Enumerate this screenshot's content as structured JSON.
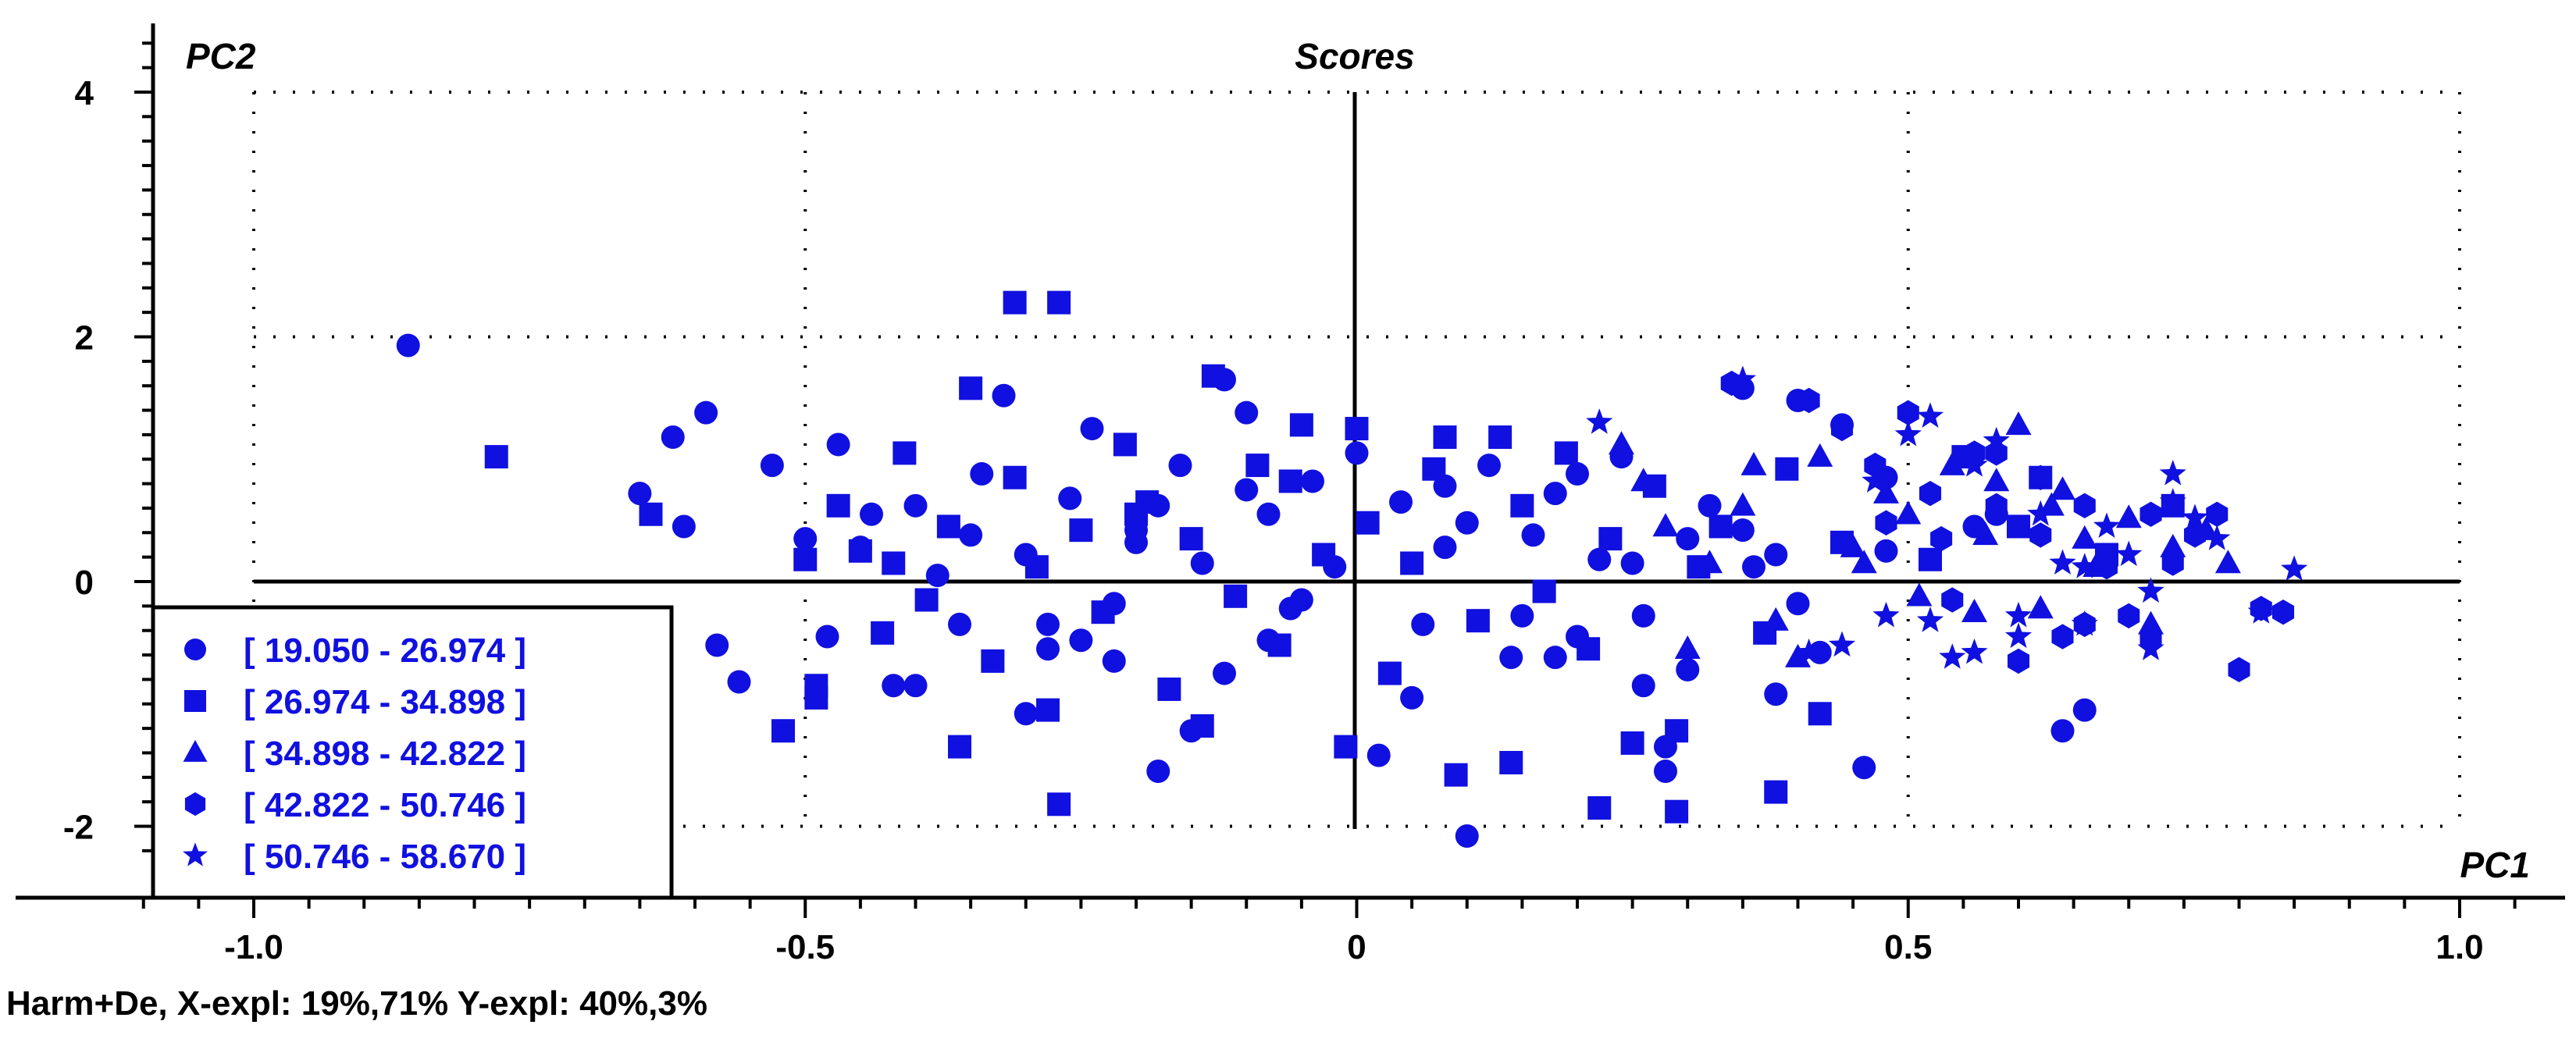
{
  "chart_data": {
    "type": "scatter",
    "title": "Scores",
    "xlabel": "PC1",
    "ylabel": "PC2",
    "xlim": [
      -1.0,
      1.0
    ],
    "ylim": [
      -2.2,
      4.4
    ],
    "x_ticks": [
      -1.0,
      -0.5,
      0,
      0.5,
      1.0
    ],
    "x_tick_labels": [
      "-1.0",
      "-0.5",
      "0",
      "0.5",
      "1.0"
    ],
    "y_ticks": [
      4,
      2,
      0,
      -2
    ],
    "y_tick_labels": [
      "4",
      "2",
      "0",
      "-2"
    ],
    "grid": true,
    "legend_position": "bottom-left",
    "footer": "Harm+De, X-expl: 19%,71%  Y-expl: 40%,3%",
    "marker_color": "#1010e0",
    "series": [
      {
        "name": "[ 19.050 - 26.974 ]",
        "marker": "circle",
        "x": [
          -0.86,
          -0.65,
          -0.62,
          -0.59,
          -0.61,
          -0.58,
          -0.56,
          -0.53,
          -0.5,
          -0.48,
          -0.47,
          -0.45,
          -0.42,
          -0.4,
          -0.38,
          -0.36,
          -0.34,
          -0.32,
          -0.3,
          -0.28,
          -0.26,
          -0.24,
          -0.22,
          -0.2,
          -0.18,
          -0.16,
          -0.14,
          -0.12,
          -0.1,
          -0.08,
          -0.06,
          -0.04,
          -0.02,
          0.02,
          0.04,
          0.06,
          0.08,
          0.1,
          0.12,
          0.14,
          0.16,
          0.18,
          0.2,
          0.22,
          0.24,
          0.26,
          0.28,
          0.3,
          0.32,
          0.35,
          0.38,
          0.4,
          0.42,
          0.44,
          0.46,
          0.48,
          -0.3,
          -0.25,
          -0.2,
          -0.15,
          -0.1,
          -0.05,
          0.0,
          0.05,
          0.1,
          0.15,
          0.2,
          0.25,
          0.3,
          0.35,
          0.4,
          -0.35,
          -0.28,
          -0.18,
          -0.08,
          0.08,
          0.18,
          0.28,
          0.38,
          0.48,
          0.58,
          0.64,
          0.66,
          0.56,
          0.36,
          0.26,
          -0.4,
          -0.44,
          -0.22,
          -0.12
        ],
        "y": [
          1.93,
          0.72,
          1.18,
          1.38,
          0.45,
          -0.52,
          -0.82,
          0.95,
          0.35,
          -0.45,
          1.12,
          0.28,
          -0.85,
          0.62,
          0.05,
          -0.35,
          0.88,
          1.52,
          0.22,
          -0.55,
          0.68,
          1.25,
          -0.18,
          0.42,
          -1.55,
          0.95,
          0.15,
          -0.75,
          1.38,
          0.55,
          -0.22,
          0.82,
          0.12,
          -1.42,
          0.65,
          -0.35,
          0.28,
          -2.08,
          0.95,
          -0.62,
          0.38,
          0.72,
          -0.45,
          0.18,
          1.02,
          -0.85,
          -1.55,
          0.35,
          0.62,
          1.58,
          0.22,
          1.48,
          -0.58,
          1.28,
          -1.52,
          0.85,
          -1.08,
          -0.48,
          0.32,
          -1.22,
          0.75,
          -0.15,
          1.05,
          -0.95,
          0.48,
          -0.28,
          0.88,
          0.15,
          -0.72,
          0.42,
          -0.18,
          0.38,
          -0.35,
          0.62,
          -0.48,
          0.78,
          -0.62,
          -1.35,
          -0.92,
          0.25,
          0.55,
          -1.22,
          -1.05,
          0.45,
          0.12,
          -0.28,
          -0.85,
          0.55,
          -0.65,
          1.65
        ]
      },
      {
        "name": "[ 26.974 - 34.898 ]",
        "marker": "square",
        "x": [
          -0.78,
          -0.64,
          -0.31,
          -0.27,
          -0.52,
          -0.5,
          -0.49,
          -0.47,
          -0.45,
          -0.43,
          -0.41,
          -0.39,
          -0.37,
          -0.35,
          -0.33,
          -0.31,
          -0.29,
          -0.27,
          -0.25,
          -0.23,
          -0.21,
          -0.19,
          -0.17,
          -0.15,
          -0.13,
          -0.11,
          -0.09,
          -0.07,
          -0.05,
          -0.03,
          -0.01,
          0.01,
          0.03,
          0.05,
          0.07,
          0.09,
          0.11,
          0.13,
          0.15,
          0.17,
          0.19,
          0.21,
          0.23,
          0.25,
          0.27,
          0.29,
          0.31,
          0.33,
          0.37,
          0.39,
          0.42,
          0.44,
          0.52,
          0.55,
          0.6,
          0.62,
          0.68,
          0.74,
          -0.36,
          -0.28,
          -0.14,
          0.0,
          0.14,
          0.29,
          -0.49,
          -0.42,
          -0.2,
          -0.06,
          0.22,
          0.08,
          0.38
        ],
        "y": [
          1.02,
          0.55,
          2.28,
          2.28,
          -1.22,
          0.18,
          -0.95,
          0.62,
          0.25,
          -0.42,
          1.05,
          -0.15,
          0.45,
          1.58,
          -0.65,
          0.85,
          0.12,
          -1.82,
          0.42,
          -0.25,
          1.12,
          0.65,
          -0.88,
          0.35,
          1.68,
          -0.12,
          0.95,
          -0.52,
          1.28,
          0.22,
          -1.35,
          0.48,
          -0.75,
          0.15,
          0.92,
          -1.58,
          -0.32,
          1.18,
          0.62,
          -0.08,
          1.05,
          -0.55,
          0.35,
          -1.32,
          0.78,
          -1.88,
          0.12,
          0.45,
          -0.42,
          0.92,
          -1.08,
          0.32,
          0.18,
          1.02,
          0.45,
          0.85,
          0.22,
          0.62,
          -1.35,
          -1.05,
          -1.18,
          1.25,
          -1.48,
          -1.22,
          -0.85,
          0.15,
          0.55,
          0.82,
          -1.85,
          1.18,
          -1.72
        ]
      },
      {
        "name": "[ 34.898 - 42.822 ]",
        "marker": "triangle",
        "x": [
          0.24,
          0.26,
          0.28,
          0.32,
          0.35,
          0.38,
          0.42,
          0.45,
          0.48,
          0.51,
          0.54,
          0.57,
          0.6,
          0.62,
          0.64,
          0.67,
          0.7,
          0.72,
          0.74,
          0.77,
          0.79,
          0.3,
          0.4,
          0.5,
          0.58,
          0.66,
          0.36,
          0.46,
          0.56,
          0.63
        ],
        "y": [
          1.12,
          0.82,
          0.45,
          0.15,
          0.62,
          -0.32,
          1.02,
          0.28,
          0.72,
          -0.12,
          0.95,
          0.38,
          1.28,
          -0.22,
          0.75,
          0.12,
          0.52,
          -0.35,
          0.28,
          0.42,
          0.15,
          -0.55,
          -0.62,
          0.55,
          0.82,
          0.35,
          0.95,
          0.15,
          -0.25,
          0.62
        ]
      },
      {
        "name": "[ 42.822 - 50.746 ]",
        "marker": "hexagon",
        "x": [
          0.41,
          0.44,
          0.47,
          0.5,
          0.53,
          0.56,
          0.58,
          0.6,
          0.62,
          0.64,
          0.66,
          0.68,
          0.7,
          0.72,
          0.74,
          0.76,
          0.78,
          0.8,
          0.82,
          0.84,
          0.54,
          0.58,
          0.62,
          0.48,
          0.52,
          0.66,
          0.72,
          0.34
        ],
        "y": [
          1.48,
          1.25,
          0.95,
          1.38,
          0.35,
          1.05,
          0.62,
          -0.65,
          0.38,
          -0.45,
          0.62,
          0.12,
          -0.28,
          0.55,
          0.15,
          0.38,
          0.55,
          -0.72,
          -0.22,
          -0.25,
          -0.15,
          1.05,
          0.85,
          0.48,
          0.72,
          -0.35,
          -0.48,
          1.62
        ]
      },
      {
        "name": "[ 50.746 - 58.670 ]",
        "marker": "star",
        "x": [
          0.22,
          0.35,
          0.41,
          0.44,
          0.47,
          0.5,
          0.52,
          0.54,
          0.56,
          0.58,
          0.6,
          0.62,
          0.64,
          0.66,
          0.68,
          0.7,
          0.72,
          0.74,
          0.76,
          0.78,
          0.85,
          0.82,
          0.72,
          0.6,
          0.48,
          0.52,
          0.56,
          0.74,
          0.66
        ],
        "y": [
          1.3,
          1.65,
          -0.58,
          -0.52,
          0.82,
          1.2,
          1.35,
          -0.62,
          0.95,
          1.15,
          -0.28,
          0.55,
          0.15,
          -0.35,
          0.45,
          0.22,
          -0.55,
          0.88,
          0.52,
          0.35,
          0.1,
          -0.25,
          -0.08,
          -0.45,
          -0.28,
          -0.32,
          -0.58,
          0.65,
          0.12
        ]
      }
    ]
  }
}
